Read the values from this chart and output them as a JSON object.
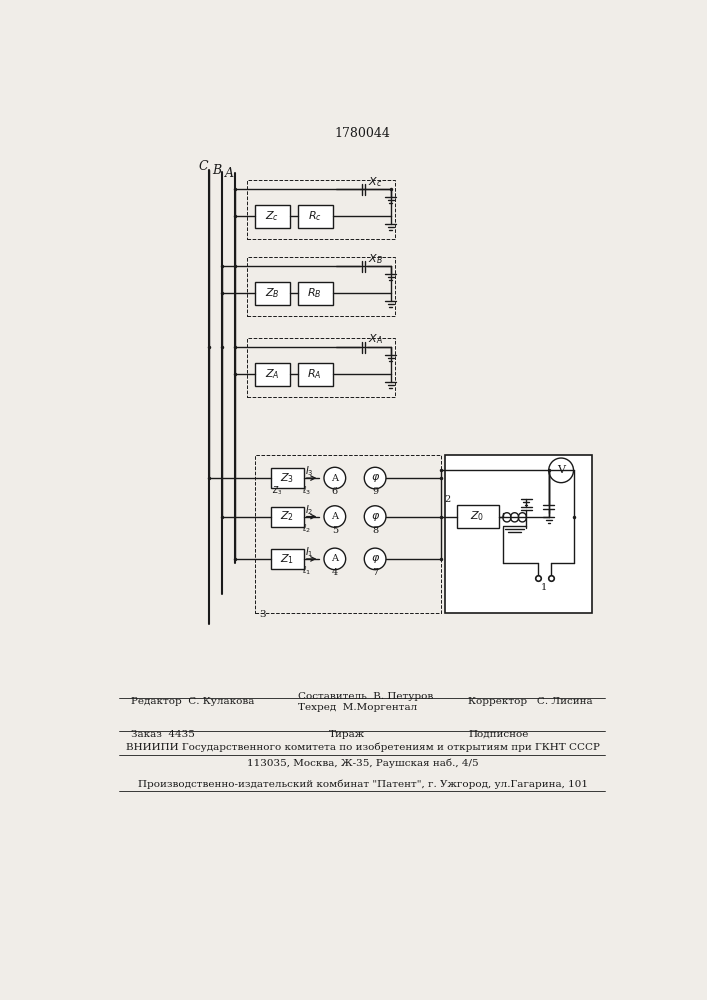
{
  "title": "1780044",
  "bg_color": "#f0ede8",
  "line_color": "#1a1a1a",
  "footer_line1_left": "Редактор  С. Кулакова",
  "footer_line1_mid1": "Составитель  В. Петуров",
  "footer_line1_mid2": "Техред  М.Моргентал",
  "footer_line1_right": "Корректор   С. Лисина",
  "footer_line2_left": "Заказ  4435",
  "footer_line2_mid": "Тираж",
  "footer_line2_right": "Подписное",
  "footer_line3": "ВНИИПИ Государственного комитета по изобретениям и открытиям при ГКНТ СССР",
  "footer_line4": "113035, Москва, Ж-35, Раушская наб., 4/5",
  "footer_line5": "Производственно-издательский комбинат \"Патент\", г. Ужгород, ул.Гагарина, 101"
}
